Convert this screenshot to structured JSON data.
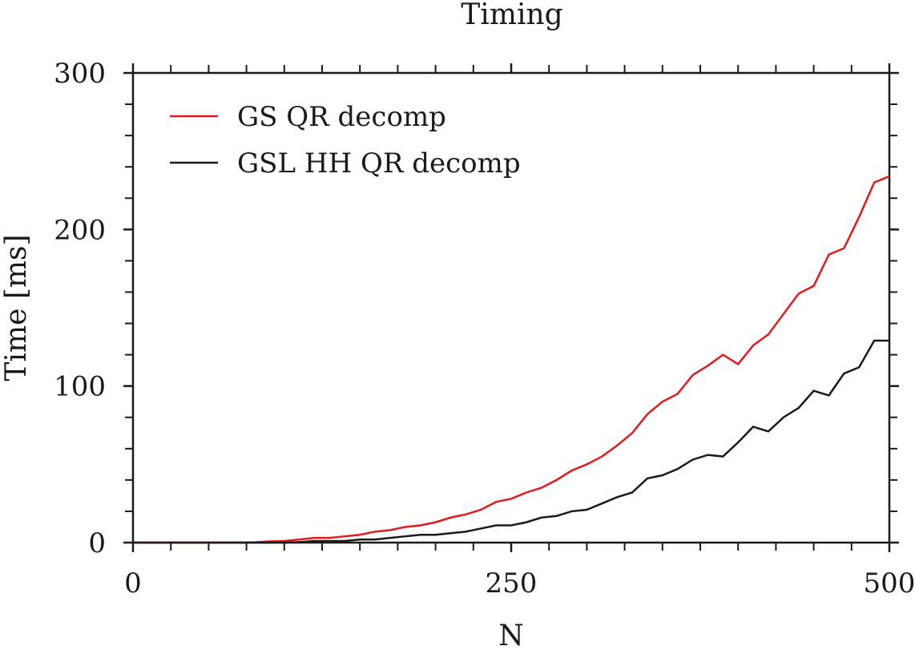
{
  "chart_data": {
    "type": "line",
    "title": "Timing",
    "xlabel": "N",
    "ylabel": "Time [ms]",
    "xlim": [
      0,
      500
    ],
    "ylim": [
      0,
      300
    ],
    "xticks": [
      0,
      250,
      500
    ],
    "yticks": [
      0,
      100,
      200,
      300
    ],
    "xtick_labels": [
      "0",
      "250",
      "500"
    ],
    "ytick_labels": [
      "0",
      "100",
      "200",
      "300"
    ],
    "grid": false,
    "legend_position": "top-left",
    "x": [
      10,
      20,
      30,
      40,
      50,
      60,
      70,
      80,
      90,
      100,
      110,
      120,
      130,
      140,
      150,
      160,
      170,
      180,
      190,
      200,
      210,
      220,
      230,
      240,
      250,
      260,
      270,
      280,
      290,
      300,
      310,
      320,
      330,
      340,
      350,
      360,
      370,
      380,
      390,
      400,
      410,
      420,
      430,
      440,
      450,
      460,
      470,
      480,
      490,
      500
    ],
    "series": [
      {
        "name": "GS QR decomp",
        "color": "#e31a1c",
        "values": [
          0,
          0,
          0,
          0,
          0,
          0,
          0,
          0.2,
          0.8,
          1,
          2,
          3,
          3,
          4,
          5,
          7,
          8,
          10,
          11,
          13,
          16,
          18,
          21,
          26,
          28,
          32,
          35,
          40,
          46,
          50,
          55,
          62,
          70,
          82,
          90,
          95,
          107,
          113,
          120,
          114,
          126,
          133,
          146,
          159,
          164,
          184,
          188,
          208,
          230,
          234
        ]
      },
      {
        "name": "GSL HH QR decomp",
        "color": "#1a1a1a",
        "values": [
          0,
          0,
          0,
          0,
          0,
          0,
          0,
          0,
          0,
          0,
          0.3,
          1,
          1,
          1,
          2,
          2,
          3,
          4,
          5,
          5,
          6,
          7,
          9,
          11,
          11,
          13,
          16,
          17,
          20,
          21,
          25,
          29,
          32,
          41,
          43,
          47,
          53,
          56,
          55,
          64,
          74,
          71,
          80,
          86,
          97,
          94,
          108,
          112,
          129,
          129
        ]
      }
    ]
  }
}
